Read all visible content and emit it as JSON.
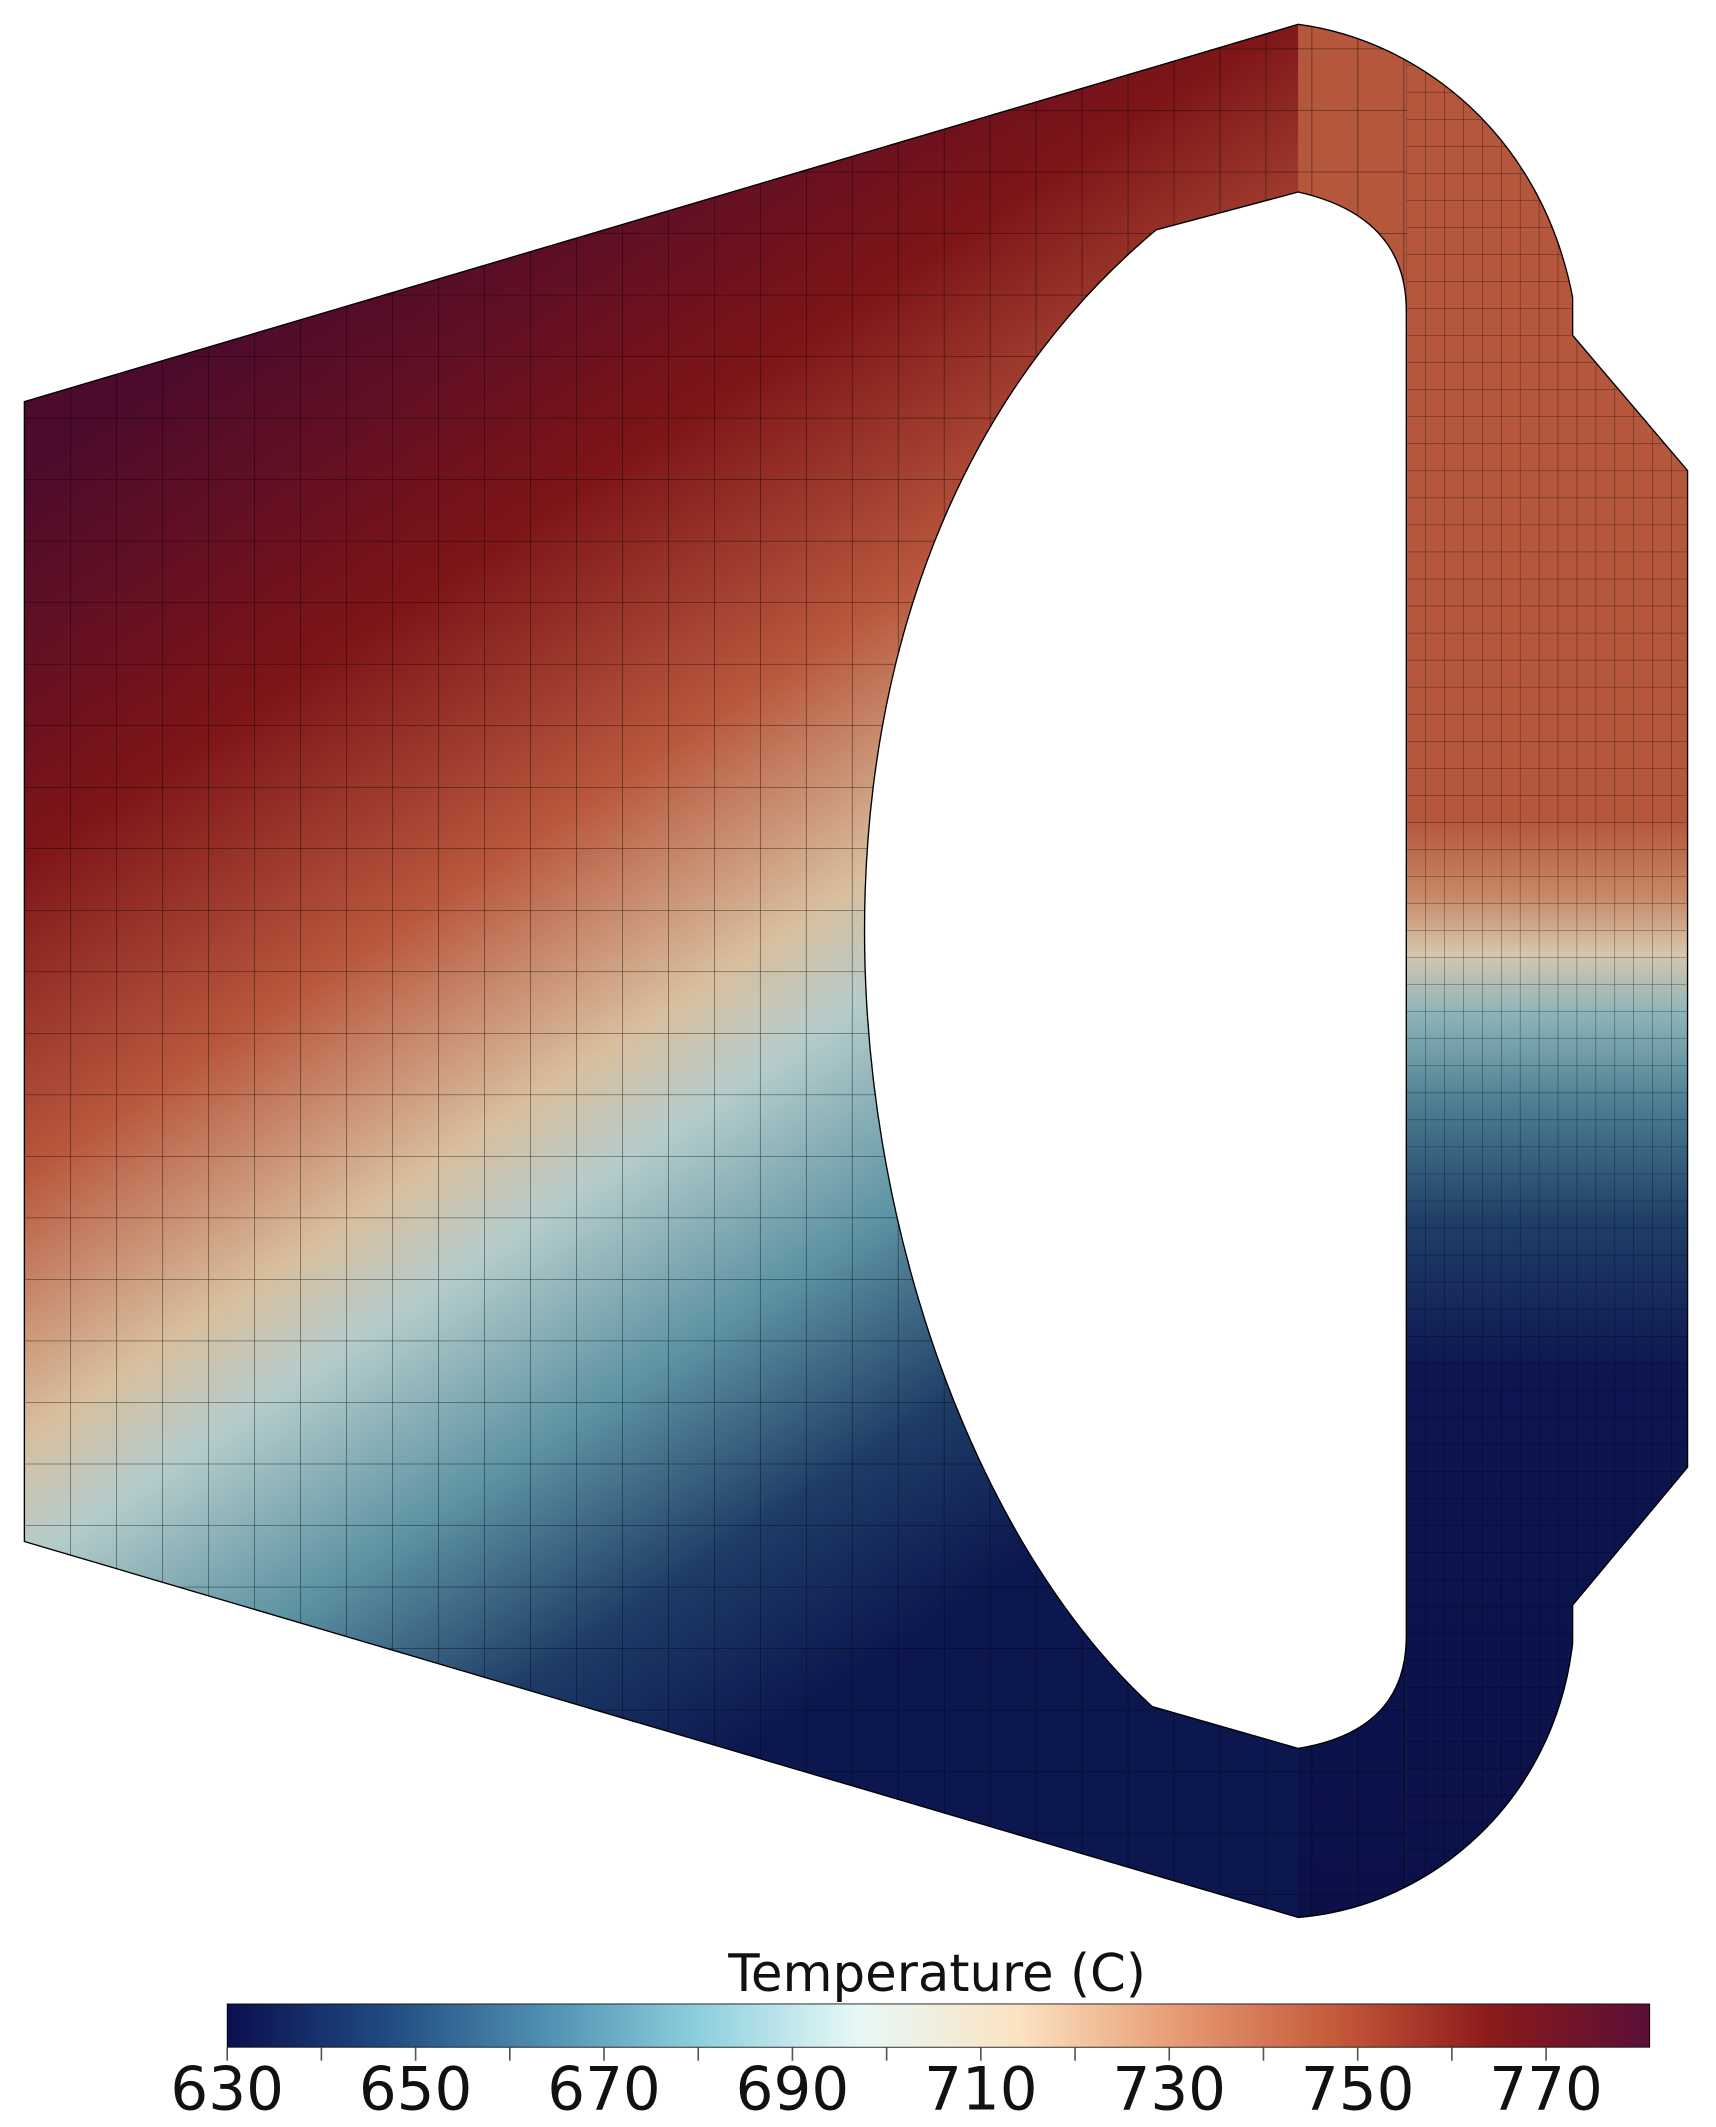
{
  "chart_data": {
    "type": "field",
    "colorbar": {
      "title": "Temperature (C)",
      "clim": [
        630,
        781
      ],
      "ticks": [
        630,
        650,
        670,
        690,
        710,
        730,
        750,
        770
      ],
      "minor_ticks": [
        640,
        660,
        680,
        700,
        720,
        740,
        760
      ],
      "colormap": [
        "#0b0f4f",
        "#1f4a80",
        "#4f8fb0",
        "#8fd0de",
        "#e8f8f6",
        "#fbe3c2",
        "#e79c74",
        "#c65a3b",
        "#8b1a1a",
        "#5a0f38"
      ]
    }
  }
}
